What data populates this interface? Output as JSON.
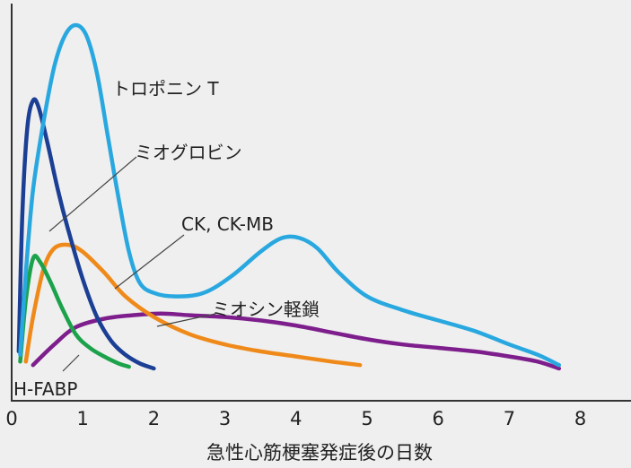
{
  "chart_data": {
    "type": "line",
    "xlabel": "急性心筋梗塞発症後の日数",
    "ylabel": "",
    "xlim": [
      0,
      8.75
    ],
    "ylim": [
      0,
      100
    ],
    "x_ticks": [
      "0",
      "1",
      "2",
      "3",
      "4",
      "5",
      "6",
      "7",
      "8"
    ],
    "grid": false,
    "legend": "none",
    "series": [
      {
        "name": "トロポニン T",
        "color": "#29a8e0",
        "x": [
          0.12,
          0.2,
          0.3,
          0.45,
          0.6,
          0.75,
          0.9,
          1.05,
          1.2,
          1.35,
          1.5,
          1.65,
          1.8,
          2.0,
          2.3,
          2.7,
          3.1,
          3.5,
          3.8,
          4.05,
          4.3,
          4.6,
          5.0,
          5.5,
          6.0,
          6.5,
          7.0,
          7.4,
          7.7
        ],
        "y": [
          4,
          28,
          52,
          72,
          88,
          97,
          100,
          97,
          86,
          68,
          50,
          34,
          25,
          22,
          21,
          22,
          27,
          34,
          38,
          38,
          35,
          28,
          21,
          17,
          14,
          11,
          7,
          4,
          1
        ]
      },
      {
        "name": "ミオグロビン",
        "color": "#1b3f94",
        "x": [
          0.1,
          0.15,
          0.22,
          0.3,
          0.38,
          0.5,
          0.65,
          0.8,
          1.0,
          1.2,
          1.4,
          1.6,
          1.8,
          2.0
        ],
        "y": [
          5,
          45,
          70,
          78,
          76,
          66,
          52,
          40,
          26,
          15,
          8,
          4,
          1.5,
          0
        ]
      },
      {
        "name": "CK, CK-MB",
        "color": "#ef8a1a",
        "x": [
          0.2,
          0.3,
          0.45,
          0.6,
          0.8,
          1.0,
          1.3,
          1.6,
          2.0,
          2.5,
          3.0,
          3.5,
          4.0,
          4.5,
          4.9
        ],
        "y": [
          2,
          15,
          29,
          35,
          36,
          34,
          28,
          21,
          15,
          10,
          7,
          5,
          3.5,
          2,
          1
        ]
      },
      {
        "name": "ミオシン軽鎖",
        "color": "#7d1e8c",
        "x": [
          0.3,
          0.6,
          0.9,
          1.3,
          1.7,
          2.1,
          2.5,
          3.0,
          3.5,
          4.0,
          4.5,
          5.0,
          5.5,
          6.0,
          6.5,
          7.0,
          7.4,
          7.7
        ],
        "y": [
          1,
          7,
          12,
          14.5,
          15.5,
          16,
          15.5,
          15,
          14,
          12.5,
          10.5,
          8.5,
          7,
          6,
          5,
          3.5,
          2,
          0
        ]
      },
      {
        "name": "H-FABP",
        "color": "#1ba24a",
        "x": [
          0.12,
          0.2,
          0.3,
          0.4,
          0.55,
          0.7,
          0.9,
          1.1,
          1.3,
          1.5,
          1.65
        ],
        "y": [
          2,
          20,
          32,
          31,
          25,
          18,
          10,
          6,
          3.5,
          1.5,
          0.5
        ]
      }
    ],
    "annotations": [
      "トロポニン T",
      "ミオグロビン",
      "CK, CK-MB",
      "ミオシン軽鎖",
      "H-FABP"
    ]
  }
}
